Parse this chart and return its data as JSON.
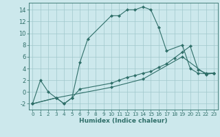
{
  "xlabel": "Humidex (Indice chaleur)",
  "bg_color": "#cce8ec",
  "grid_color": "#a0c8cc",
  "line_color": "#2e6e68",
  "xlim": [
    -0.5,
    23.5
  ],
  "ylim": [
    -3.0,
    15.2
  ],
  "yticks": [
    -2,
    0,
    2,
    4,
    6,
    8,
    10,
    12,
    14
  ],
  "xticks": [
    0,
    1,
    2,
    3,
    4,
    5,
    6,
    7,
    8,
    9,
    10,
    11,
    12,
    13,
    14,
    15,
    16,
    17,
    18,
    19,
    20,
    21,
    22,
    23
  ],
  "line1_x": [
    0,
    1,
    2,
    3,
    4,
    5,
    6,
    7,
    10,
    11,
    12,
    13,
    14,
    15,
    16,
    17,
    19,
    20,
    21,
    22,
    23
  ],
  "line1_y": [
    -2,
    2,
    0,
    -1,
    -2,
    -1,
    5,
    9,
    13,
    13,
    14,
    14,
    14.5,
    14,
    11,
    7,
    8,
    4,
    3.2,
    3.1,
    3.2
  ],
  "line2_x": [
    0,
    3,
    4,
    5,
    6,
    10,
    11,
    12,
    13,
    14,
    15,
    16,
    17,
    18,
    19,
    20,
    21,
    22,
    23
  ],
  "line2_y": [
    -2,
    -1,
    -2,
    -1,
    0.5,
    1.5,
    2.0,
    2.5,
    2.8,
    3.2,
    3.5,
    4.2,
    4.8,
    5.8,
    6.8,
    7.8,
    3.8,
    3.2,
    3.2
  ],
  "line3_x": [
    0,
    3,
    10,
    14,
    19,
    22,
    23
  ],
  "line3_y": [
    -2,
    -1,
    0.8,
    2.2,
    6.0,
    3.0,
    3.2
  ]
}
